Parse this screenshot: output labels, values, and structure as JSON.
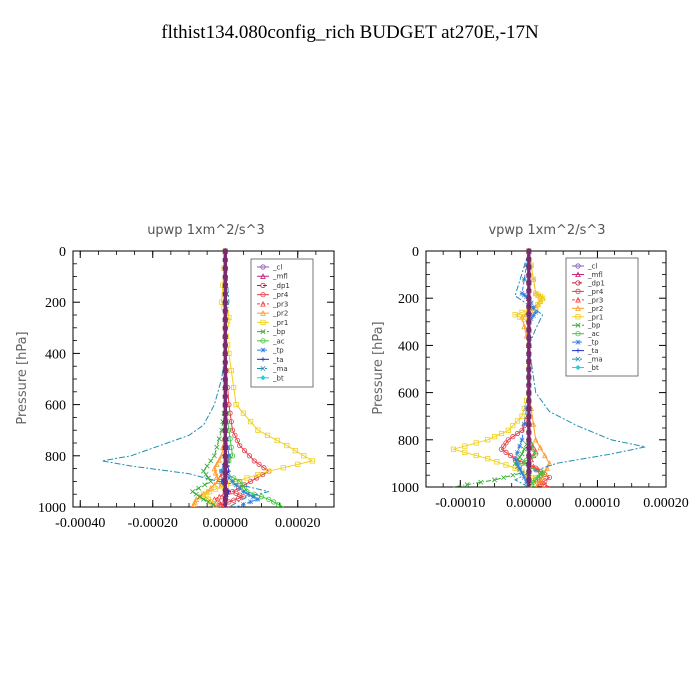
{
  "figure": {
    "title": "flthist134.080config_rich  BUDGET at270E,-17N"
  },
  "colors": {
    "_cl": "#8a5ab8",
    "_mfl": "#c0247a",
    "_dp1": "#b21e3a",
    "_pr4": "#e0404a",
    "_pr3": "#ff3a3a",
    "_pr2": "#ff9a2a",
    "_pr1": "#f0d020",
    "_bp": "#30a830",
    "_ac": "#3cc83c",
    "_tp": "#3080e0",
    "_ta": "#2030c8",
    "_ma": "#2090b0",
    "_bt": "#20d0e0"
  },
  "chart_data": [
    {
      "type": "line",
      "title": "upwp   1xm^2/s^3",
      "ylabel": "Pressure [hPa]",
      "xlim": [
        -0.00042,
        0.0003
      ],
      "ylim": [
        1000,
        0
      ],
      "xticks": [
        -0.0004,
        -0.0002,
        0.0,
        0.0002
      ],
      "xtick_labels": [
        "-0.00040",
        "-0.00020",
        "0.00000",
        "0.00020"
      ],
      "yticks": [
        0,
        200,
        400,
        600,
        800,
        1000
      ],
      "ytick_labels": [
        "0",
        "200",
        "400",
        "600",
        "800",
        "1000"
      ],
      "legend_position": "top-right",
      "series": [
        {
          "name": "_cl",
          "x": [
            0,
            0,
            0,
            0,
            0,
            0,
            0,
            0,
            0,
            0,
            0
          ],
          "y": [
            0,
            100,
            200,
            300,
            400,
            500,
            600,
            700,
            800,
            900,
            1000
          ]
        },
        {
          "name": "_mfl",
          "x": [
            0,
            0,
            0,
            0,
            0,
            0,
            0,
            0,
            0,
            0,
            0
          ],
          "y": [
            0,
            100,
            200,
            300,
            400,
            500,
            600,
            700,
            800,
            900,
            1000
          ]
        },
        {
          "name": "_dp1",
          "x": [
            0,
            0,
            0,
            0,
            0,
            0,
            0,
            0,
            0,
            0,
            0
          ],
          "y": [
            0,
            100,
            200,
            300,
            400,
            500,
            600,
            700,
            800,
            900,
            1000
          ]
        },
        {
          "name": "_pr4",
          "x": [
            0,
            0,
            0,
            1e-05,
            2e-05,
            4e-05,
            8e-05,
            0.00012,
            7e-05,
            2e-05,
            5e-05,
            1e-05,
            -3e-05
          ],
          "y": [
            0,
            200,
            400,
            600,
            700,
            760,
            820,
            860,
            900,
            940,
            960,
            980,
            1000
          ]
        },
        {
          "name": "_pr3",
          "x": [
            0,
            0,
            0,
            0,
            0,
            1e-05,
            0,
            -2e-05,
            1e-05,
            -3e-05,
            1e-05
          ],
          "y": [
            0,
            200,
            400,
            600,
            700,
            800,
            850,
            900,
            940,
            970,
            1000
          ]
        },
        {
          "name": "_pr2",
          "x": [
            0,
            0,
            0,
            0,
            0,
            -1e-05,
            -3e-05,
            -2e-05,
            -5e-05,
            -8e-05,
            -9e-05
          ],
          "y": [
            0,
            200,
            400,
            600,
            700,
            800,
            850,
            900,
            940,
            970,
            1000
          ]
        },
        {
          "name": "_pr1",
          "x": [
            0,
            -1e-05,
            1e-05,
            0,
            1e-05,
            3e-05,
            9e-05,
            0.00017,
            0.00024,
            0.00012,
            3e-05,
            -1e-05,
            -6e-05,
            -4e-05,
            -2e-05
          ],
          "y": [
            0,
            200,
            260,
            300,
            400,
            600,
            700,
            760,
            820,
            860,
            900,
            920,
            950,
            980,
            1000
          ]
        },
        {
          "name": "_bp",
          "x": [
            0,
            0,
            0,
            0,
            -1e-05,
            -3e-05,
            -6e-05,
            -4e-05,
            -9e-05,
            -6e-05,
            -2e-05
          ],
          "y": [
            0,
            200,
            400,
            600,
            700,
            800,
            860,
            900,
            940,
            970,
            1000
          ]
        },
        {
          "name": "_ac",
          "x": [
            0,
            0,
            0,
            0,
            1e-05,
            2e-05,
            -1e-05,
            4e-05,
            6e-05,
            0.00012,
            0.00016
          ],
          "y": [
            0,
            200,
            400,
            600,
            700,
            800,
            860,
            900,
            940,
            970,
            1000
          ]
        },
        {
          "name": "_tp",
          "x": [
            0,
            0,
            0,
            0,
            0,
            1e-05,
            -1e-05,
            2e-05,
            5e-05,
            9e-05,
            3e-05
          ],
          "y": [
            0,
            200,
            400,
            600,
            700,
            800,
            860,
            900,
            940,
            970,
            1000
          ]
        },
        {
          "name": "_ta",
          "x": [
            0,
            0,
            0,
            0,
            0,
            0,
            1e-05,
            -1e-05,
            1e-05,
            0,
            0
          ],
          "y": [
            0,
            200,
            400,
            600,
            700,
            800,
            860,
            900,
            940,
            970,
            1000
          ]
        },
        {
          "name": "_ma",
          "x": [
            0,
            1e-05,
            0,
            0,
            -1e-05,
            -3e-05,
            -6e-05,
            -0.0001,
            -0.00018,
            -0.00026,
            -0.00034,
            -0.00026,
            -0.0001,
            -2e-05,
            6e-05,
            0.00012,
            6e-05,
            1e-05
          ],
          "y": [
            0,
            200,
            270,
            400,
            500,
            600,
            680,
            720,
            760,
            800,
            820,
            840,
            870,
            900,
            920,
            940,
            960,
            1000
          ]
        },
        {
          "name": "_bt",
          "x": [
            0,
            0,
            0,
            0,
            0,
            0,
            0,
            0,
            0,
            0,
            0
          ],
          "y": [
            0,
            100,
            200,
            300,
            400,
            500,
            600,
            700,
            800,
            900,
            1000
          ]
        }
      ]
    },
    {
      "type": "line",
      "title": "vpwp   1xm^2/s^3",
      "ylabel": "Pressure [hPa]",
      "xlim": [
        -0.00015,
        0.0002
      ],
      "ylim": [
        1000,
        0
      ],
      "xticks": [
        -0.0001,
        0.0,
        0.0001,
        0.0002
      ],
      "xtick_labels": [
        "-0.00010",
        "0.00000",
        "0.00010",
        "0.00020"
      ],
      "yticks": [
        0,
        200,
        400,
        600,
        800,
        1000
      ],
      "ytick_labels": [
        "0",
        "200",
        "400",
        "600",
        "800",
        "1000"
      ],
      "legend_position": "top-right",
      "series": [
        {
          "name": "_cl",
          "x": [
            0,
            0,
            0,
            0,
            0,
            0,
            0,
            0,
            0,
            0,
            0
          ],
          "y": [
            0,
            100,
            200,
            300,
            400,
            500,
            600,
            700,
            800,
            900,
            1000
          ]
        },
        {
          "name": "_mfl",
          "x": [
            0,
            0,
            0,
            0,
            0,
            0,
            0,
            0,
            0,
            0,
            0
          ],
          "y": [
            0,
            100,
            200,
            300,
            400,
            500,
            600,
            700,
            800,
            900,
            1000
          ]
        },
        {
          "name": "_dp1",
          "x": [
            0,
            0,
            0,
            0,
            0,
            0,
            0,
            0,
            0,
            0,
            0
          ],
          "y": [
            0,
            100,
            200,
            300,
            400,
            500,
            600,
            700,
            800,
            900,
            1000
          ]
        },
        {
          "name": "_pr4",
          "x": [
            0,
            0,
            0,
            0,
            0,
            -1e-05,
            -3e-05,
            -4e-05,
            -2e-05,
            1e-05,
            3e-05,
            1e-05
          ],
          "y": [
            0,
            200,
            400,
            600,
            700,
            760,
            800,
            840,
            880,
            920,
            960,
            1000
          ]
        },
        {
          "name": "_pr3",
          "x": [
            0,
            0,
            0,
            0,
            0,
            0,
            1e-05,
            0,
            2e-05,
            1e-05,
            3e-05
          ],
          "y": [
            0,
            200,
            400,
            600,
            700,
            800,
            850,
            900,
            940,
            970,
            1000
          ]
        },
        {
          "name": "_pr2",
          "x": [
            0,
            1e-05,
            2e-05,
            1e-05,
            -1e-05,
            0,
            0,
            1e-05,
            3e-05,
            2e-05,
            1e-05
          ],
          "y": [
            0,
            180,
            200,
            240,
            280,
            400,
            600,
            800,
            900,
            960,
            1000
          ]
        },
        {
          "name": "_pr1",
          "x": [
            0,
            1e-05,
            2e-05,
            1e-05,
            -2e-05,
            0,
            0,
            -1e-05,
            -3e-05,
            -6e-05,
            -0.00011,
            -6e-05,
            -2e-05,
            1e-05,
            0
          ],
          "y": [
            0,
            180,
            200,
            240,
            270,
            300,
            600,
            700,
            760,
            800,
            840,
            880,
            920,
            960,
            1000
          ]
        },
        {
          "name": "_bp",
          "x": [
            0,
            0,
            0,
            0,
            0,
            0,
            -1e-05,
            -2e-05,
            -1e-05,
            -5e-05,
            -0.00011
          ],
          "y": [
            0,
            200,
            400,
            600,
            700,
            800,
            860,
            900,
            940,
            970,
            1000
          ]
        },
        {
          "name": "_ac",
          "x": [
            0,
            0,
            0,
            0,
            0,
            0,
            1e-05,
            -1e-05,
            2e-05,
            1e-05,
            0
          ],
          "y": [
            0,
            200,
            400,
            600,
            700,
            800,
            860,
            900,
            940,
            970,
            1000
          ]
        },
        {
          "name": "_tp",
          "x": [
            0,
            -1e-05,
            0,
            1e-05,
            0,
            0,
            0,
            -1e-05,
            -2e-05,
            -1e-05,
            0
          ],
          "y": [
            0,
            180,
            200,
            260,
            300,
            400,
            600,
            800,
            880,
            940,
            1000
          ]
        },
        {
          "name": "_ta",
          "x": [
            0,
            0,
            0,
            0,
            0,
            0,
            0,
            0,
            0,
            0,
            0
          ],
          "y": [
            0,
            200,
            400,
            600,
            700,
            800,
            860,
            900,
            940,
            970,
            1000
          ]
        },
        {
          "name": "_ma",
          "x": [
            0,
            -2e-05,
            0,
            2e-05,
            1e-05,
            0,
            1e-05,
            3e-05,
            7e-05,
            0.00012,
            0.00017,
            0.00012,
            4e-05,
            0,
            -2e-05,
            0
          ],
          "y": [
            0,
            190,
            230,
            270,
            330,
            400,
            600,
            680,
            740,
            800,
            830,
            860,
            900,
            940,
            970,
            1000
          ]
        },
        {
          "name": "_bt",
          "x": [
            0,
            0,
            0,
            0,
            0,
            0,
            0,
            0,
            0,
            0,
            0
          ],
          "y": [
            0,
            100,
            200,
            300,
            400,
            500,
            600,
            700,
            800,
            900,
            1000
          ]
        }
      ]
    }
  ]
}
